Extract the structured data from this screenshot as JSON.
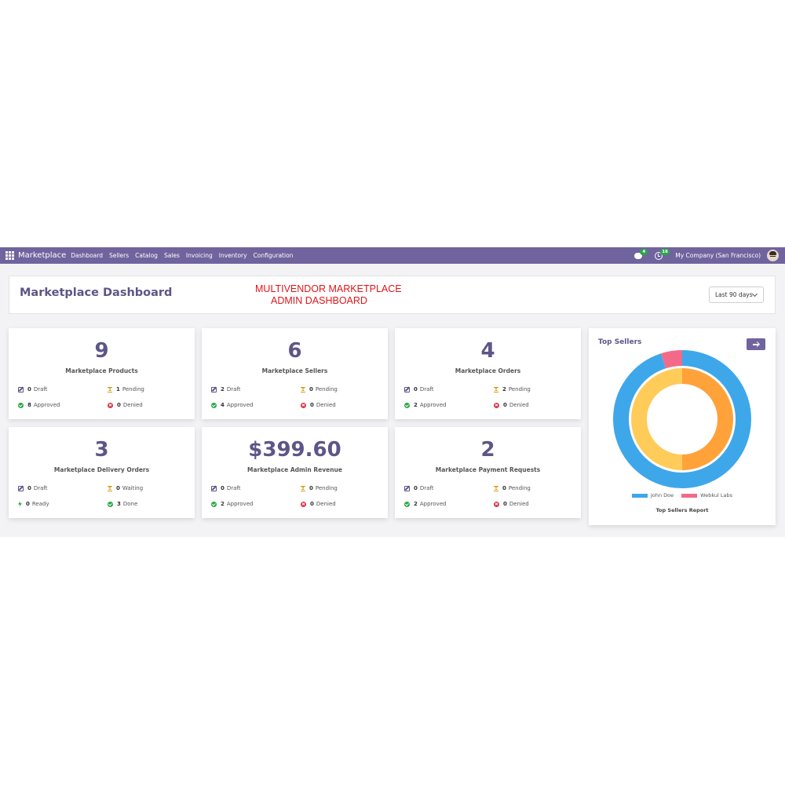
{
  "navbar": {
    "brand": "Marketplace",
    "menu": [
      "Dashboard",
      "Sellers",
      "Catalog",
      "Sales",
      "Invoicing",
      "Inventory",
      "Configuration"
    ],
    "messages_count": "4",
    "activities_count": "16",
    "company": "My Company (San Francisco)"
  },
  "header": {
    "title": "Marketplace Dashboard",
    "banner_line1": "MULTIVENDOR MARKETPLACE",
    "banner_line2": "ADMIN DASHBOARD",
    "period": "Last 90 days"
  },
  "cards": [
    {
      "value": "9",
      "label": "Marketplace Products",
      "stats": [
        {
          "icon": "draft",
          "count": "0",
          "text": "Draft"
        },
        {
          "icon": "pending",
          "count": "1",
          "text": "Pending"
        },
        {
          "icon": "approved",
          "count": "8",
          "text": "Approved"
        },
        {
          "icon": "denied",
          "count": "0",
          "text": "Denied"
        }
      ]
    },
    {
      "value": "6",
      "label": "Marketplace Sellers",
      "stats": [
        {
          "icon": "draft",
          "count": "2",
          "text": "Draft"
        },
        {
          "icon": "pending",
          "count": "0",
          "text": "Pending"
        },
        {
          "icon": "approved",
          "count": "4",
          "text": "Approved"
        },
        {
          "icon": "denied",
          "count": "0",
          "text": "Denied"
        }
      ]
    },
    {
      "value": "4",
      "label": "Marketplace Orders",
      "stats": [
        {
          "icon": "draft",
          "count": "0",
          "text": "Draft"
        },
        {
          "icon": "pending",
          "count": "2",
          "text": "Pending"
        },
        {
          "icon": "approved",
          "count": "2",
          "text": "Approved"
        },
        {
          "icon": "denied",
          "count": "0",
          "text": "Denied"
        }
      ]
    },
    {
      "value": "3",
      "label": "Marketplace Delivery Orders",
      "stats": [
        {
          "icon": "draft",
          "count": "0",
          "text": "Draft"
        },
        {
          "icon": "pending",
          "count": "0",
          "text": "Waiting"
        },
        {
          "icon": "ready",
          "count": "0",
          "text": "Ready"
        },
        {
          "icon": "done",
          "count": "3",
          "text": "Done"
        }
      ]
    },
    {
      "value": "$399.60",
      "label": "Marketplace Admin Revenue",
      "stats": [
        {
          "icon": "draft",
          "count": "0",
          "text": "Draft"
        },
        {
          "icon": "pending",
          "count": "0",
          "text": "Pending"
        },
        {
          "icon": "approved",
          "count": "2",
          "text": "Approved"
        },
        {
          "icon": "denied",
          "count": "0",
          "text": "Denied"
        }
      ]
    },
    {
      "value": "2",
      "label": "Marketplace Payment Requests",
      "stats": [
        {
          "icon": "draft",
          "count": "0",
          "text": "Draft"
        },
        {
          "icon": "pending",
          "count": "0",
          "text": "Pending"
        },
        {
          "icon": "approved",
          "count": "2",
          "text": "Approved"
        },
        {
          "icon": "denied",
          "count": "0",
          "text": "Denied"
        }
      ]
    }
  ],
  "top_sellers": {
    "title": "Top Sellers",
    "report_label": "Top Sellers Report",
    "legend": [
      {
        "name": "John Doe",
        "color": "#3ea7ea"
      },
      {
        "name": "Webkul Labs",
        "color": "#f3698a"
      }
    ],
    "outer_ring": [
      {
        "name": "John Doe",
        "share": 0.95,
        "color": "#3ea7ea"
      },
      {
        "name": "Webkul Labs",
        "share": 0.05,
        "color": "#f3698a"
      }
    ],
    "inner_ring": [
      {
        "share": 0.5,
        "color": "#ffa23a"
      },
      {
        "share": 0.5,
        "color": "#ffcc5a"
      }
    ]
  }
}
